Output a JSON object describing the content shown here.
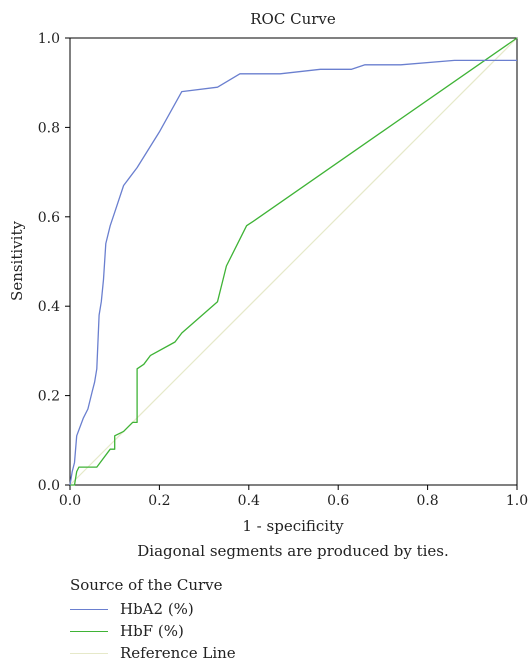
{
  "chart_data": {
    "type": "line",
    "title": "ROC Curve",
    "xlabel": "1 - specificity",
    "ylabel": "Sensitivity",
    "note": "Diagonal segments are produced by ties.",
    "xlim": [
      0,
      1
    ],
    "ylim": [
      0,
      1
    ],
    "xticks": [
      "0.0",
      "0.2",
      "0.4",
      "0.6",
      "0.8",
      "1.0"
    ],
    "yticks": [
      "0.0",
      "0.2",
      "0.4",
      "0.6",
      "0.8",
      "1.0"
    ],
    "grid": false,
    "legend": {
      "title": "Source of the Curve",
      "placement": "bottom-left"
    },
    "series": [
      {
        "name": "HbA2 (%)",
        "color": "#6a7fcf",
        "x": [
          0,
          0.005,
          0.01,
          0.015,
          0.03,
          0.04,
          0.05,
          0.055,
          0.06,
          0.065,
          0.07,
          0.075,
          0.08,
          0.09,
          0.1,
          0.12,
          0.15,
          0.2,
          0.25,
          0.33,
          0.38,
          0.47,
          0.56,
          0.63,
          0.66,
          0.74,
          0.86,
          0.93,
          1.0
        ],
        "y": [
          0,
          0.03,
          0.05,
          0.11,
          0.15,
          0.17,
          0.21,
          0.23,
          0.26,
          0.38,
          0.41,
          0.46,
          0.54,
          0.58,
          0.61,
          0.67,
          0.71,
          0.79,
          0.88,
          0.89,
          0.92,
          0.92,
          0.93,
          0.93,
          0.94,
          0.94,
          0.95,
          0.95,
          0.95
        ]
      },
      {
        "name": "HbF (%)",
        "color": "#3fb336",
        "x": [
          0,
          0.005,
          0.01,
          0.015,
          0.02,
          0.06,
          0.09,
          0.1,
          0.1,
          0.12,
          0.14,
          0.15,
          0.15,
          0.165,
          0.18,
          0.235,
          0.25,
          0.33,
          0.345,
          0.35,
          0.38,
          0.395,
          0.41,
          1.0
        ],
        "y": [
          0,
          0.0,
          0.0,
          0.03,
          0.04,
          0.04,
          0.08,
          0.08,
          0.11,
          0.12,
          0.14,
          0.14,
          0.26,
          0.27,
          0.29,
          0.32,
          0.34,
          0.41,
          0.47,
          0.49,
          0.55,
          0.58,
          0.59,
          1.0
        ]
      },
      {
        "name": "Reference Line",
        "color": "#e6e9c9",
        "x": [
          0,
          1
        ],
        "y": [
          0,
          1
        ]
      }
    ]
  }
}
